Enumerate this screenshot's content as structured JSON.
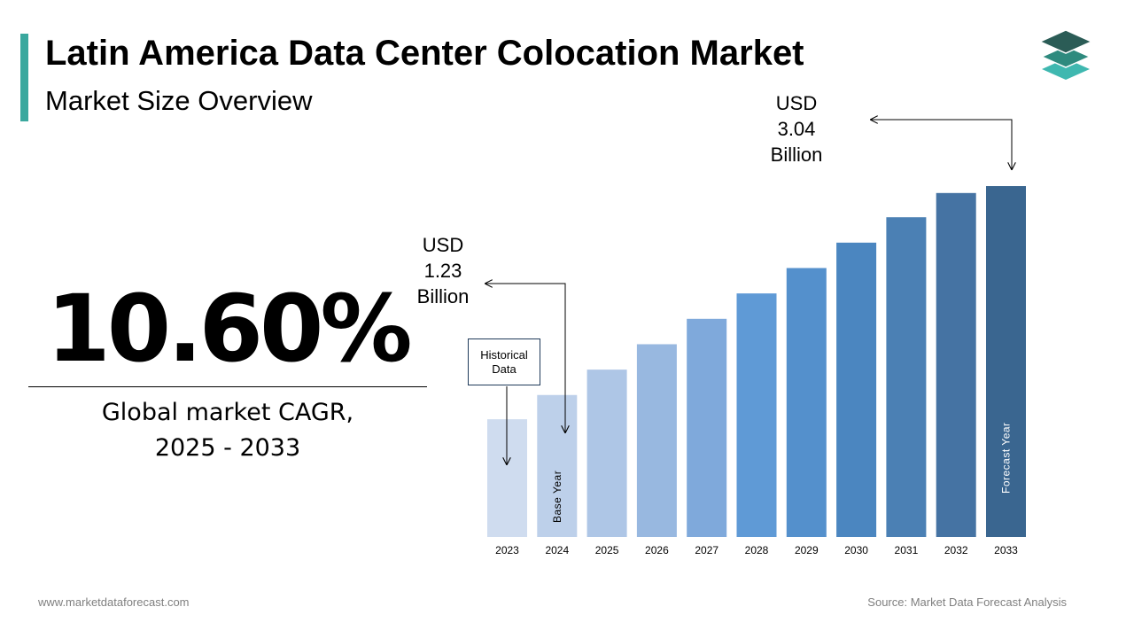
{
  "header": {
    "title": "Latin America Data Center Colocation Market",
    "subtitle": "Market Size Overview",
    "accent_color": "#3aa89e",
    "logo_icon": "stacked-layers-icon"
  },
  "cagr": {
    "value": "10.60%",
    "label_line1": "Global market CAGR,",
    "label_line2": "2025 - 2033"
  },
  "callouts": {
    "start": {
      "line1": "USD",
      "line2": "1.23",
      "line3": "Billion"
    },
    "end": {
      "line1": "USD",
      "line2": "3.04",
      "line3": "Billion"
    },
    "historical_box": {
      "line1": "Historical",
      "line2": "Data"
    }
  },
  "chart_data": {
    "type": "bar",
    "title": "",
    "xlabel": "",
    "ylabel": "",
    "categories": [
      "2023",
      "2024",
      "2025",
      "2026",
      "2027",
      "2028",
      "2029",
      "2030",
      "2031",
      "2032",
      "2033"
    ],
    "values": [
      1.02,
      1.23,
      1.45,
      1.67,
      1.89,
      2.11,
      2.33,
      2.55,
      2.77,
      2.98,
      3.04
    ],
    "ylim": [
      0,
      3.04
    ],
    "grid": false,
    "legend": "none",
    "bar_colors": [
      "#cfdcef",
      "#bdd0ea",
      "#aec6e6",
      "#98b8e0",
      "#7fa9db",
      "#5f9ad6",
      "#5490cc",
      "#4b86c0",
      "#4b80b4",
      "#4573a3",
      "#3a6690"
    ],
    "bar_annotations": {
      "2024": "Base Year",
      "2033": "Forecast Year"
    }
  },
  "footer": {
    "website": "www.marketdataforecast.com",
    "source": "Source: Market Data Forecast Analysis"
  }
}
